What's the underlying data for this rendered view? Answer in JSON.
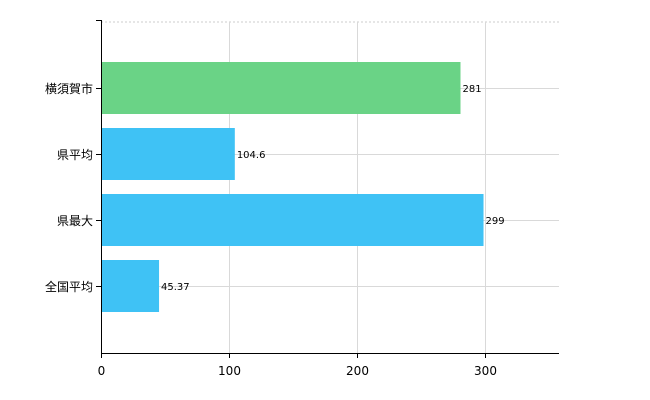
{
  "chart_data": {
    "type": "bar",
    "orientation": "horizontal",
    "categories": [
      "横須賀市",
      "県平均",
      "県最大",
      "全国平均"
    ],
    "values": [
      281,
      104.6,
      299,
      45.37
    ],
    "value_labels": [
      "281",
      "104.6",
      "299",
      "45.37"
    ],
    "bar_colors": [
      "#6ad386",
      "#3fc2f5",
      "#3fc2f5",
      "#3fc2f5"
    ],
    "xlim": [
      0,
      358
    ],
    "xticks": [
      0,
      100,
      200,
      300
    ],
    "xtick_labels": [
      "0",
      "100",
      "200",
      "300"
    ],
    "grid": true
  }
}
